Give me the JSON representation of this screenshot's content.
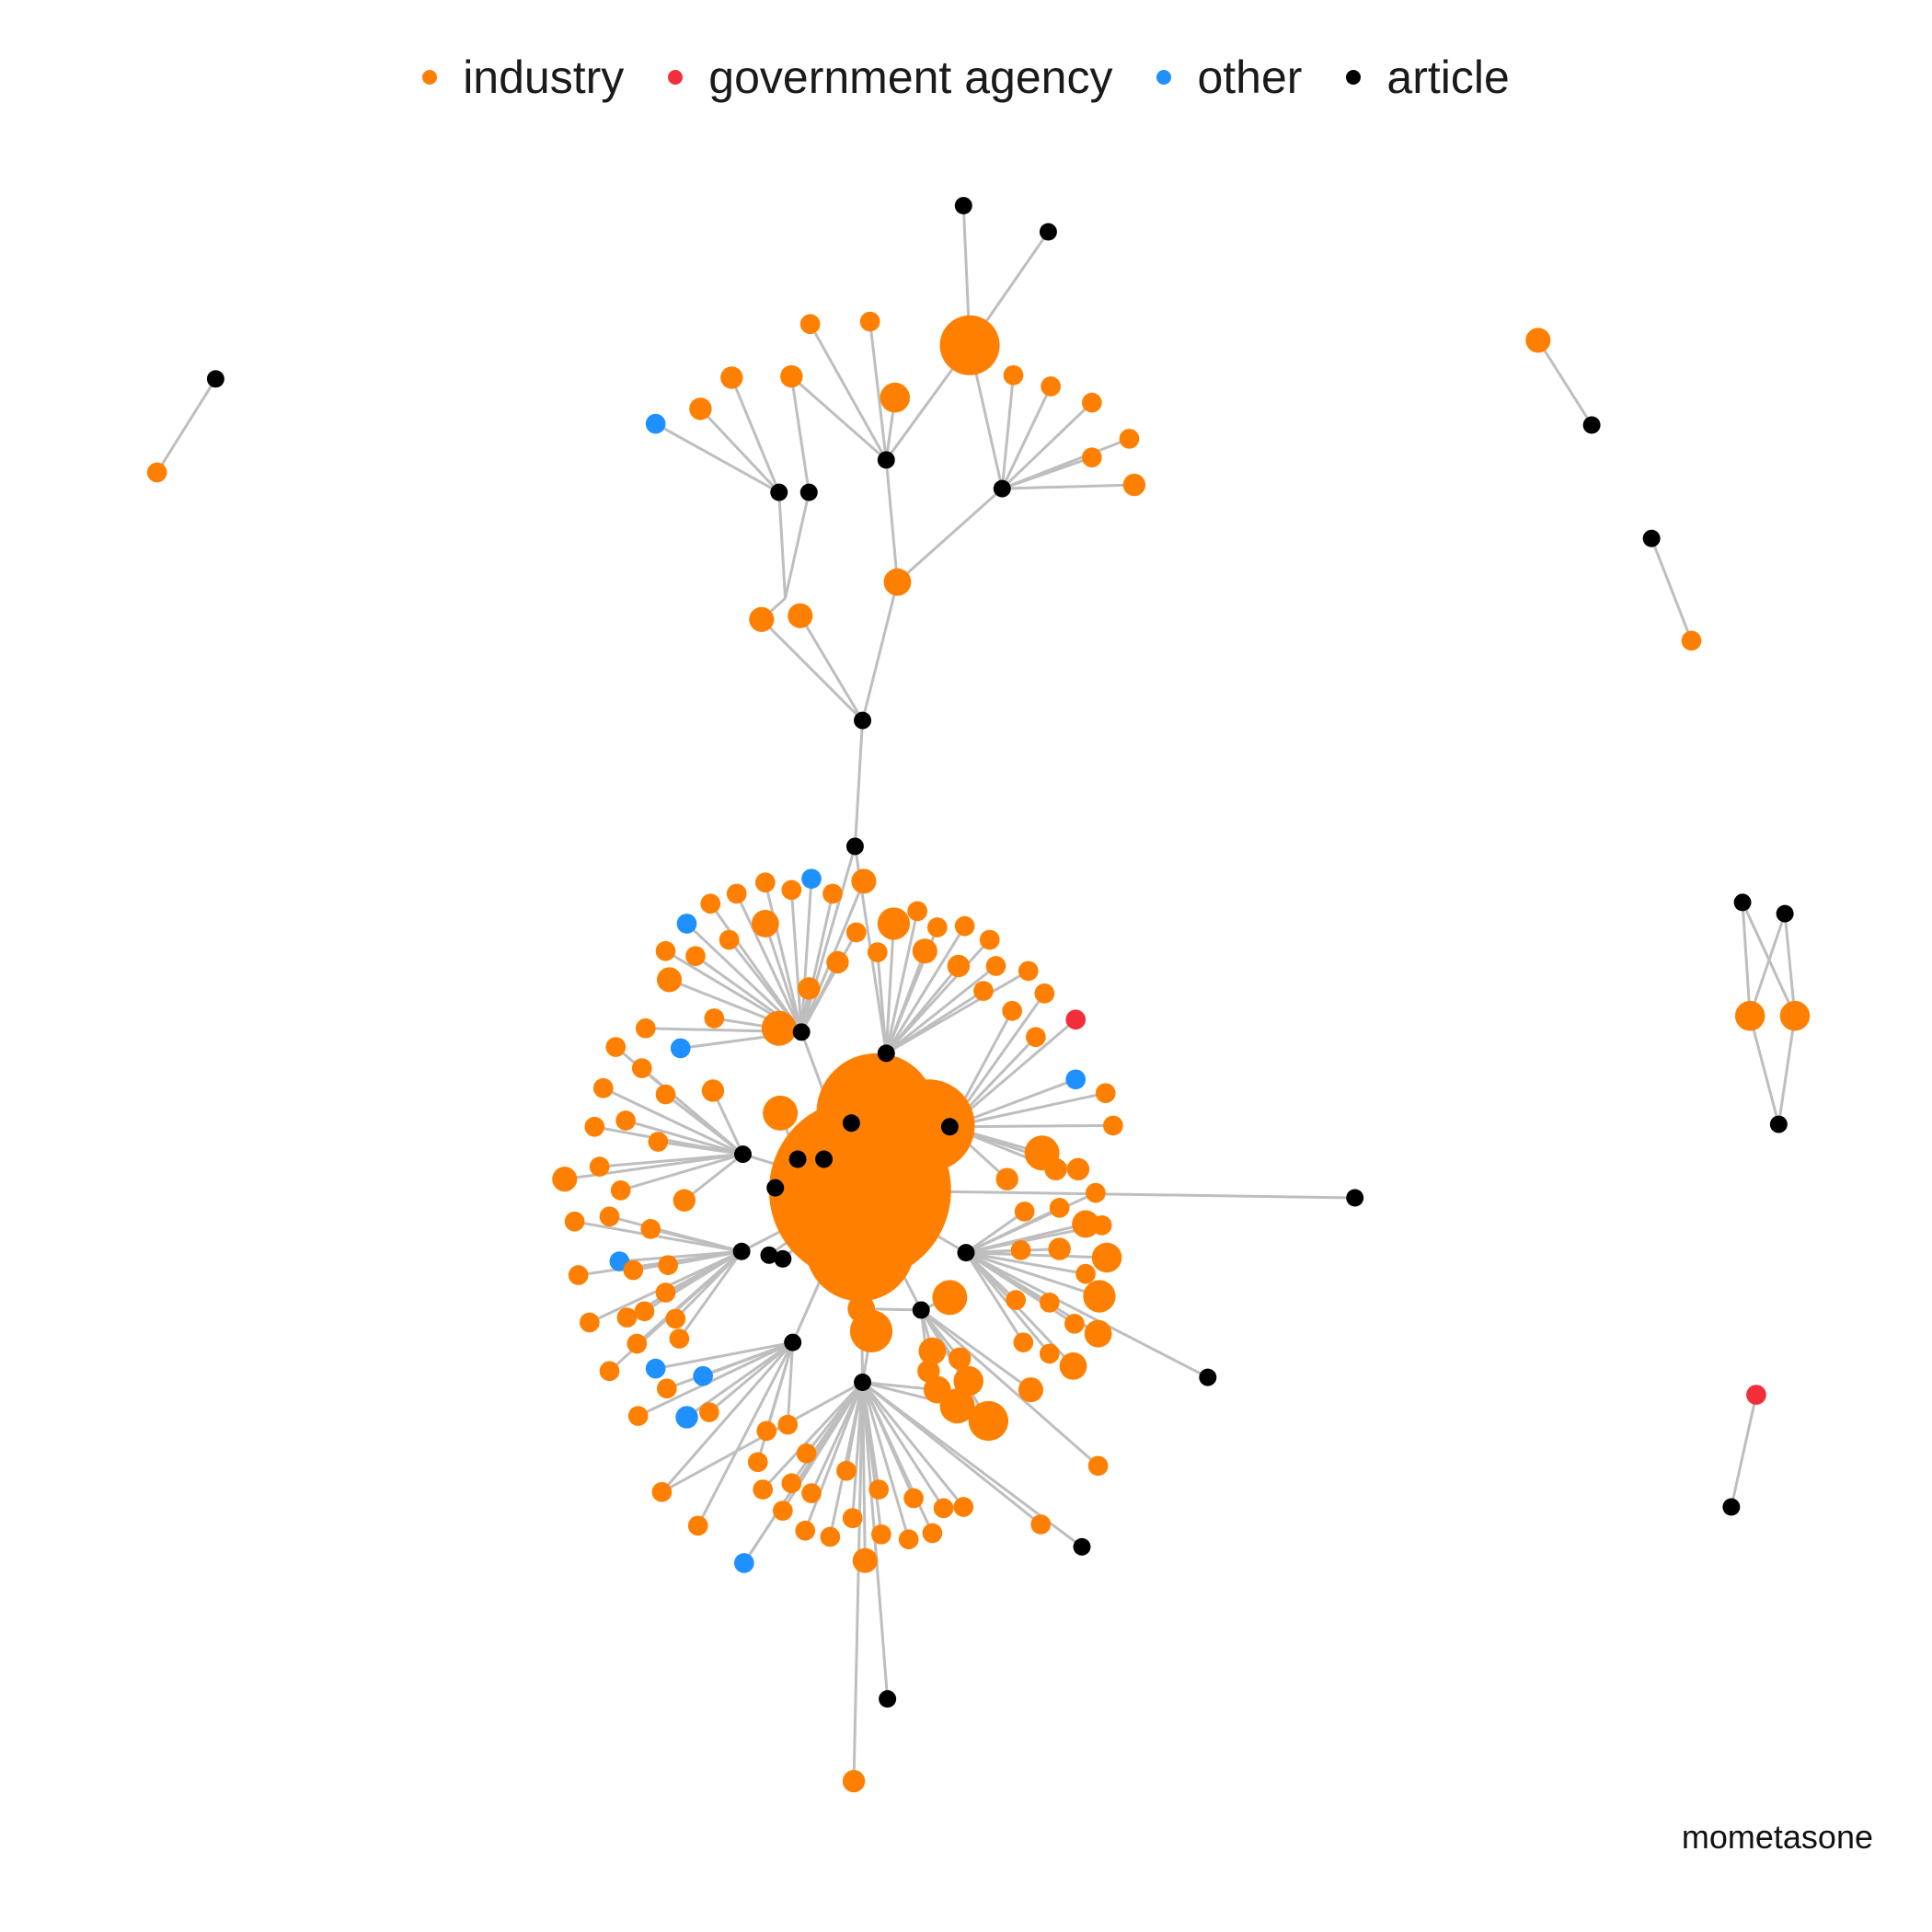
{
  "legend": {
    "items": [
      {
        "label": "industry",
        "color": "#FF8000"
      },
      {
        "label": "government agency",
        "color": "#F22E3A"
      },
      {
        "label": "other",
        "color": "#1E90FF"
      },
      {
        "label": "article",
        "color": "#000000"
      }
    ]
  },
  "caption": "mometasone",
  "colors": {
    "edge": "#BEBEBE"
  }
}
